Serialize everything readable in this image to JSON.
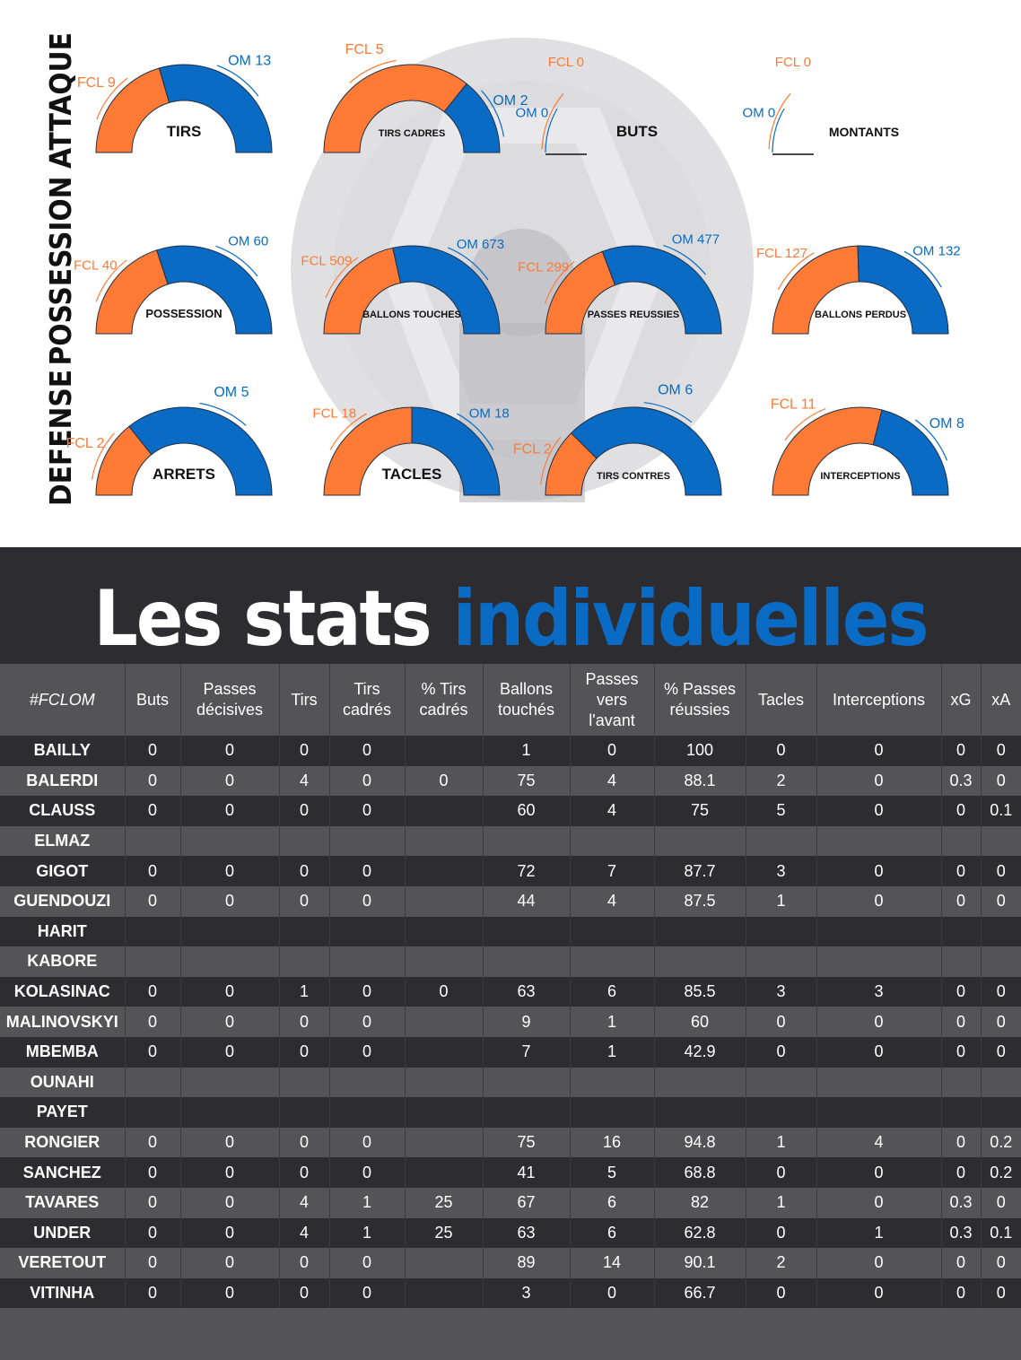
{
  "colors": {
    "fcl": "#ff7a35",
    "om": "#0a6bc4",
    "dark": "#2d2c30",
    "mid": "#545356"
  },
  "sections": {
    "attaque": "ATTAQUE",
    "possession": "POSSESSION",
    "defense": "DEFENSE"
  },
  "chart_data": [
    {
      "type": "gauge",
      "section": "ATTAQUE",
      "title": "TIRS",
      "series": [
        {
          "name": "FCL",
          "label": "FCL 9",
          "value": 9
        },
        {
          "name": "OM",
          "label": "OM 13",
          "value": 13
        }
      ]
    },
    {
      "type": "gauge",
      "section": "ATTAQUE",
      "title": "TIRS CADRES",
      "series": [
        {
          "name": "FCL",
          "label": "FCL 5",
          "value": 5
        },
        {
          "name": "OM",
          "label": "OM 2",
          "value": 2
        }
      ]
    },
    {
      "type": "gauge",
      "section": "ATTAQUE",
      "title": "BUTS",
      "series": [
        {
          "name": "FCL",
          "label": "FCL 0",
          "value": 0
        },
        {
          "name": "OM",
          "label": "OM 0",
          "value": 0
        }
      ]
    },
    {
      "type": "gauge",
      "section": "ATTAQUE",
      "title": "MONTANTS",
      "series": [
        {
          "name": "FCL",
          "label": "FCL 0",
          "value": 0
        },
        {
          "name": "OM",
          "label": "OM 0",
          "value": 0
        }
      ]
    },
    {
      "type": "gauge",
      "section": "POSSESSION",
      "title": "POSSESSION",
      "series": [
        {
          "name": "FCL",
          "label": "FCL 40",
          "value": 40
        },
        {
          "name": "OM",
          "label": "OM 60",
          "value": 60
        }
      ]
    },
    {
      "type": "gauge",
      "section": "POSSESSION",
      "title": "BALLONS TOUCHES",
      "series": [
        {
          "name": "FCL",
          "label": "FCL 509",
          "value": 509
        },
        {
          "name": "OM",
          "label": "OM 673",
          "value": 673
        }
      ]
    },
    {
      "type": "gauge",
      "section": "POSSESSION",
      "title": "PASSES REUSSIES",
      "series": [
        {
          "name": "FCL",
          "label": "FCL 299",
          "value": 299
        },
        {
          "name": "OM",
          "label": "OM 477",
          "value": 477
        }
      ]
    },
    {
      "type": "gauge",
      "section": "POSSESSION",
      "title": "BALLONS PERDUS",
      "series": [
        {
          "name": "FCL",
          "label": "FCL 127",
          "value": 127
        },
        {
          "name": "OM",
          "label": "OM 132",
          "value": 132
        }
      ]
    },
    {
      "type": "gauge",
      "section": "DEFENSE",
      "title": "ARRETS",
      "series": [
        {
          "name": "FCL",
          "label": "FCL 2",
          "value": 2
        },
        {
          "name": "OM",
          "label": "OM 5",
          "value": 5
        }
      ]
    },
    {
      "type": "gauge",
      "section": "DEFENSE",
      "title": "TACLES",
      "series": [
        {
          "name": "FCL",
          "label": "FCL 18",
          "value": 18
        },
        {
          "name": "OM",
          "label": "OM 18",
          "value": 18
        }
      ]
    },
    {
      "type": "gauge",
      "section": "DEFENSE",
      "title": "TIRS CONTRES",
      "series": [
        {
          "name": "FCL",
          "label": "FCL 2",
          "value": 2
        },
        {
          "name": "OM",
          "label": "OM 6",
          "value": 6
        }
      ]
    },
    {
      "type": "gauge",
      "section": "DEFENSE",
      "title": "INTERCEPTIONS",
      "series": [
        {
          "name": "FCL",
          "label": "FCL 11",
          "value": 11
        },
        {
          "name": "OM",
          "label": "OM 8",
          "value": 8
        }
      ]
    }
  ],
  "individual": {
    "title_white": "Les stats",
    "title_blue": "individuelles",
    "headers": [
      "#FCLOM",
      "Buts",
      "Passes décisives",
      "Tirs",
      "Tirs cadrés",
      "% Tirs cadrés",
      "Ballons touchés",
      "Passes vers l'avant",
      "% Passes réussies",
      "Tacles",
      "Interceptions",
      "xG",
      "xA"
    ],
    "rows": [
      [
        "BAILLY",
        "0",
        "0",
        "0",
        "0",
        "",
        "1",
        "0",
        "100",
        "0",
        "0",
        "0",
        "0"
      ],
      [
        "BALERDI",
        "0",
        "0",
        "4",
        "0",
        "0",
        "75",
        "4",
        "88.1",
        "2",
        "0",
        "0.3",
        "0"
      ],
      [
        "CLAUSS",
        "0",
        "0",
        "0",
        "0",
        "",
        "60",
        "4",
        "75",
        "5",
        "0",
        "0",
        "0.1"
      ],
      [
        "ELMAZ",
        "",
        "",
        "",
        "",
        "",
        "",
        "",
        "",
        "",
        "",
        "",
        ""
      ],
      [
        "GIGOT",
        "0",
        "0",
        "0",
        "0",
        "",
        "72",
        "7",
        "87.7",
        "3",
        "0",
        "0",
        "0"
      ],
      [
        "GUENDOUZI",
        "0",
        "0",
        "0",
        "0",
        "",
        "44",
        "4",
        "87.5",
        "1",
        "0",
        "0",
        "0"
      ],
      [
        "HARIT",
        "",
        "",
        "",
        "",
        "",
        "",
        "",
        "",
        "",
        "",
        "",
        ""
      ],
      [
        "KABORE",
        "",
        "",
        "",
        "",
        "",
        "",
        "",
        "",
        "",
        "",
        "",
        ""
      ],
      [
        "KOLASINAC",
        "0",
        "0",
        "1",
        "0",
        "0",
        "63",
        "6",
        "85.5",
        "3",
        "3",
        "0",
        "0"
      ],
      [
        "MALINOVSKYI",
        "0",
        "0",
        "0",
        "0",
        "",
        "9",
        "1",
        "60",
        "0",
        "0",
        "0",
        "0"
      ],
      [
        "MBEMBA",
        "0",
        "0",
        "0",
        "0",
        "",
        "7",
        "1",
        "42.9",
        "0",
        "0",
        "0",
        "0"
      ],
      [
        "OUNAHI",
        "",
        "",
        "",
        "",
        "",
        "",
        "",
        "",
        "",
        "",
        "",
        ""
      ],
      [
        "PAYET",
        "",
        "",
        "",
        "",
        "",
        "",
        "",
        "",
        "",
        "",
        "",
        ""
      ],
      [
        "RONGIER",
        "0",
        "0",
        "0",
        "0",
        "",
        "75",
        "16",
        "94.8",
        "1",
        "4",
        "0",
        "0.2"
      ],
      [
        "SANCHEZ",
        "0",
        "0",
        "0",
        "0",
        "",
        "41",
        "5",
        "68.8",
        "0",
        "0",
        "0",
        "0.2"
      ],
      [
        "TAVARES",
        "0",
        "0",
        "4",
        "1",
        "25",
        "67",
        "6",
        "82",
        "1",
        "0",
        "0.3",
        "0"
      ],
      [
        "UNDER",
        "0",
        "0",
        "4",
        "1",
        "25",
        "63",
        "6",
        "62.8",
        "0",
        "1",
        "0.3",
        "0.1"
      ],
      [
        "VERETOUT",
        "0",
        "0",
        "0",
        "0",
        "",
        "89",
        "14",
        "90.1",
        "2",
        "0",
        "0",
        "0"
      ],
      [
        "VITINHA",
        "0",
        "0",
        "0",
        "0",
        "",
        "3",
        "0",
        "66.7",
        "0",
        "0",
        "0",
        "0"
      ]
    ]
  }
}
